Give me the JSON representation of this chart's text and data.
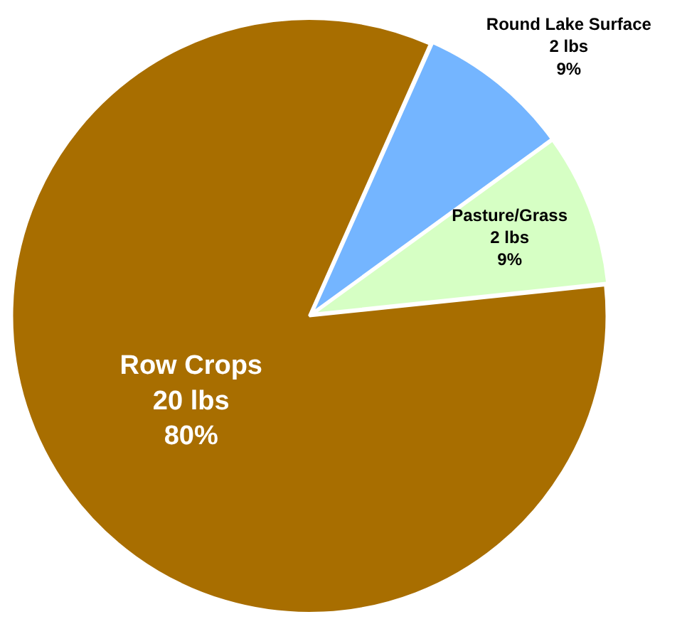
{
  "chart_data": {
    "type": "pie",
    "categories": [
      "Round Lake Surface",
      "Pasture/Grass",
      "Row Crops"
    ],
    "values": [
      2,
      2,
      20
    ],
    "colors": [
      "#74b5ff",
      "#d6ffc4",
      "#a86e00"
    ],
    "value_labels": [
      "2 lbs\n9%",
      "2 lbs\n9%",
      "20 lbs\n80%"
    ],
    "legend": false
  }
}
